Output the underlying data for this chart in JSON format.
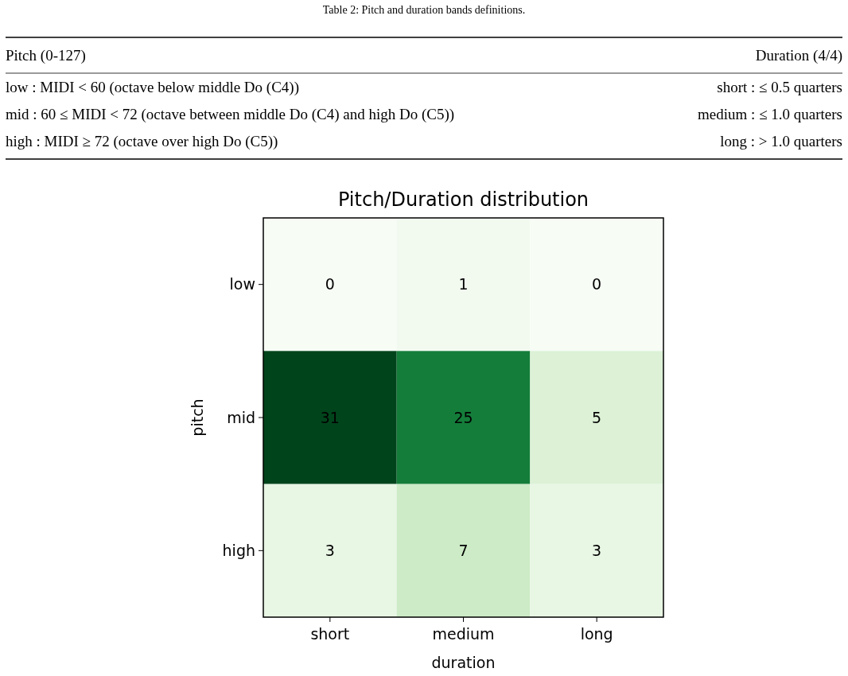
{
  "chart_data": [
    {
      "type": "other",
      "title": "Table 2: Pitch and duration bands definitions.",
      "annotations": [
        "Pitch (0-127)",
        "Duration (4/4)",
        "low : MIDI < 60 (octave below middle Do (C4))",
        "short : ≤ 0.5 quarters",
        "mid : 60 ≤ MIDI < 72 (octave between middle Do (C4) and high Do (C5))",
        "medium : ≤ 1.0 quarters",
        "high : MIDI ≥ 72 (octave over high Do (C5))",
        "long : > 1.0 quarters"
      ]
    },
    {
      "type": "heatmap",
      "title": "Pitch/Duration distribution",
      "xlabel": "duration",
      "ylabel": "pitch",
      "categories": [
        "short",
        "medium",
        "long"
      ],
      "y_categories": [
        "low",
        "mid",
        "high"
      ],
      "data_labels": true,
      "cells": [
        [
          0,
          1,
          0
        ],
        [
          31,
          25,
          5
        ],
        [
          3,
          7,
          3
        ]
      ]
    }
  ]
}
